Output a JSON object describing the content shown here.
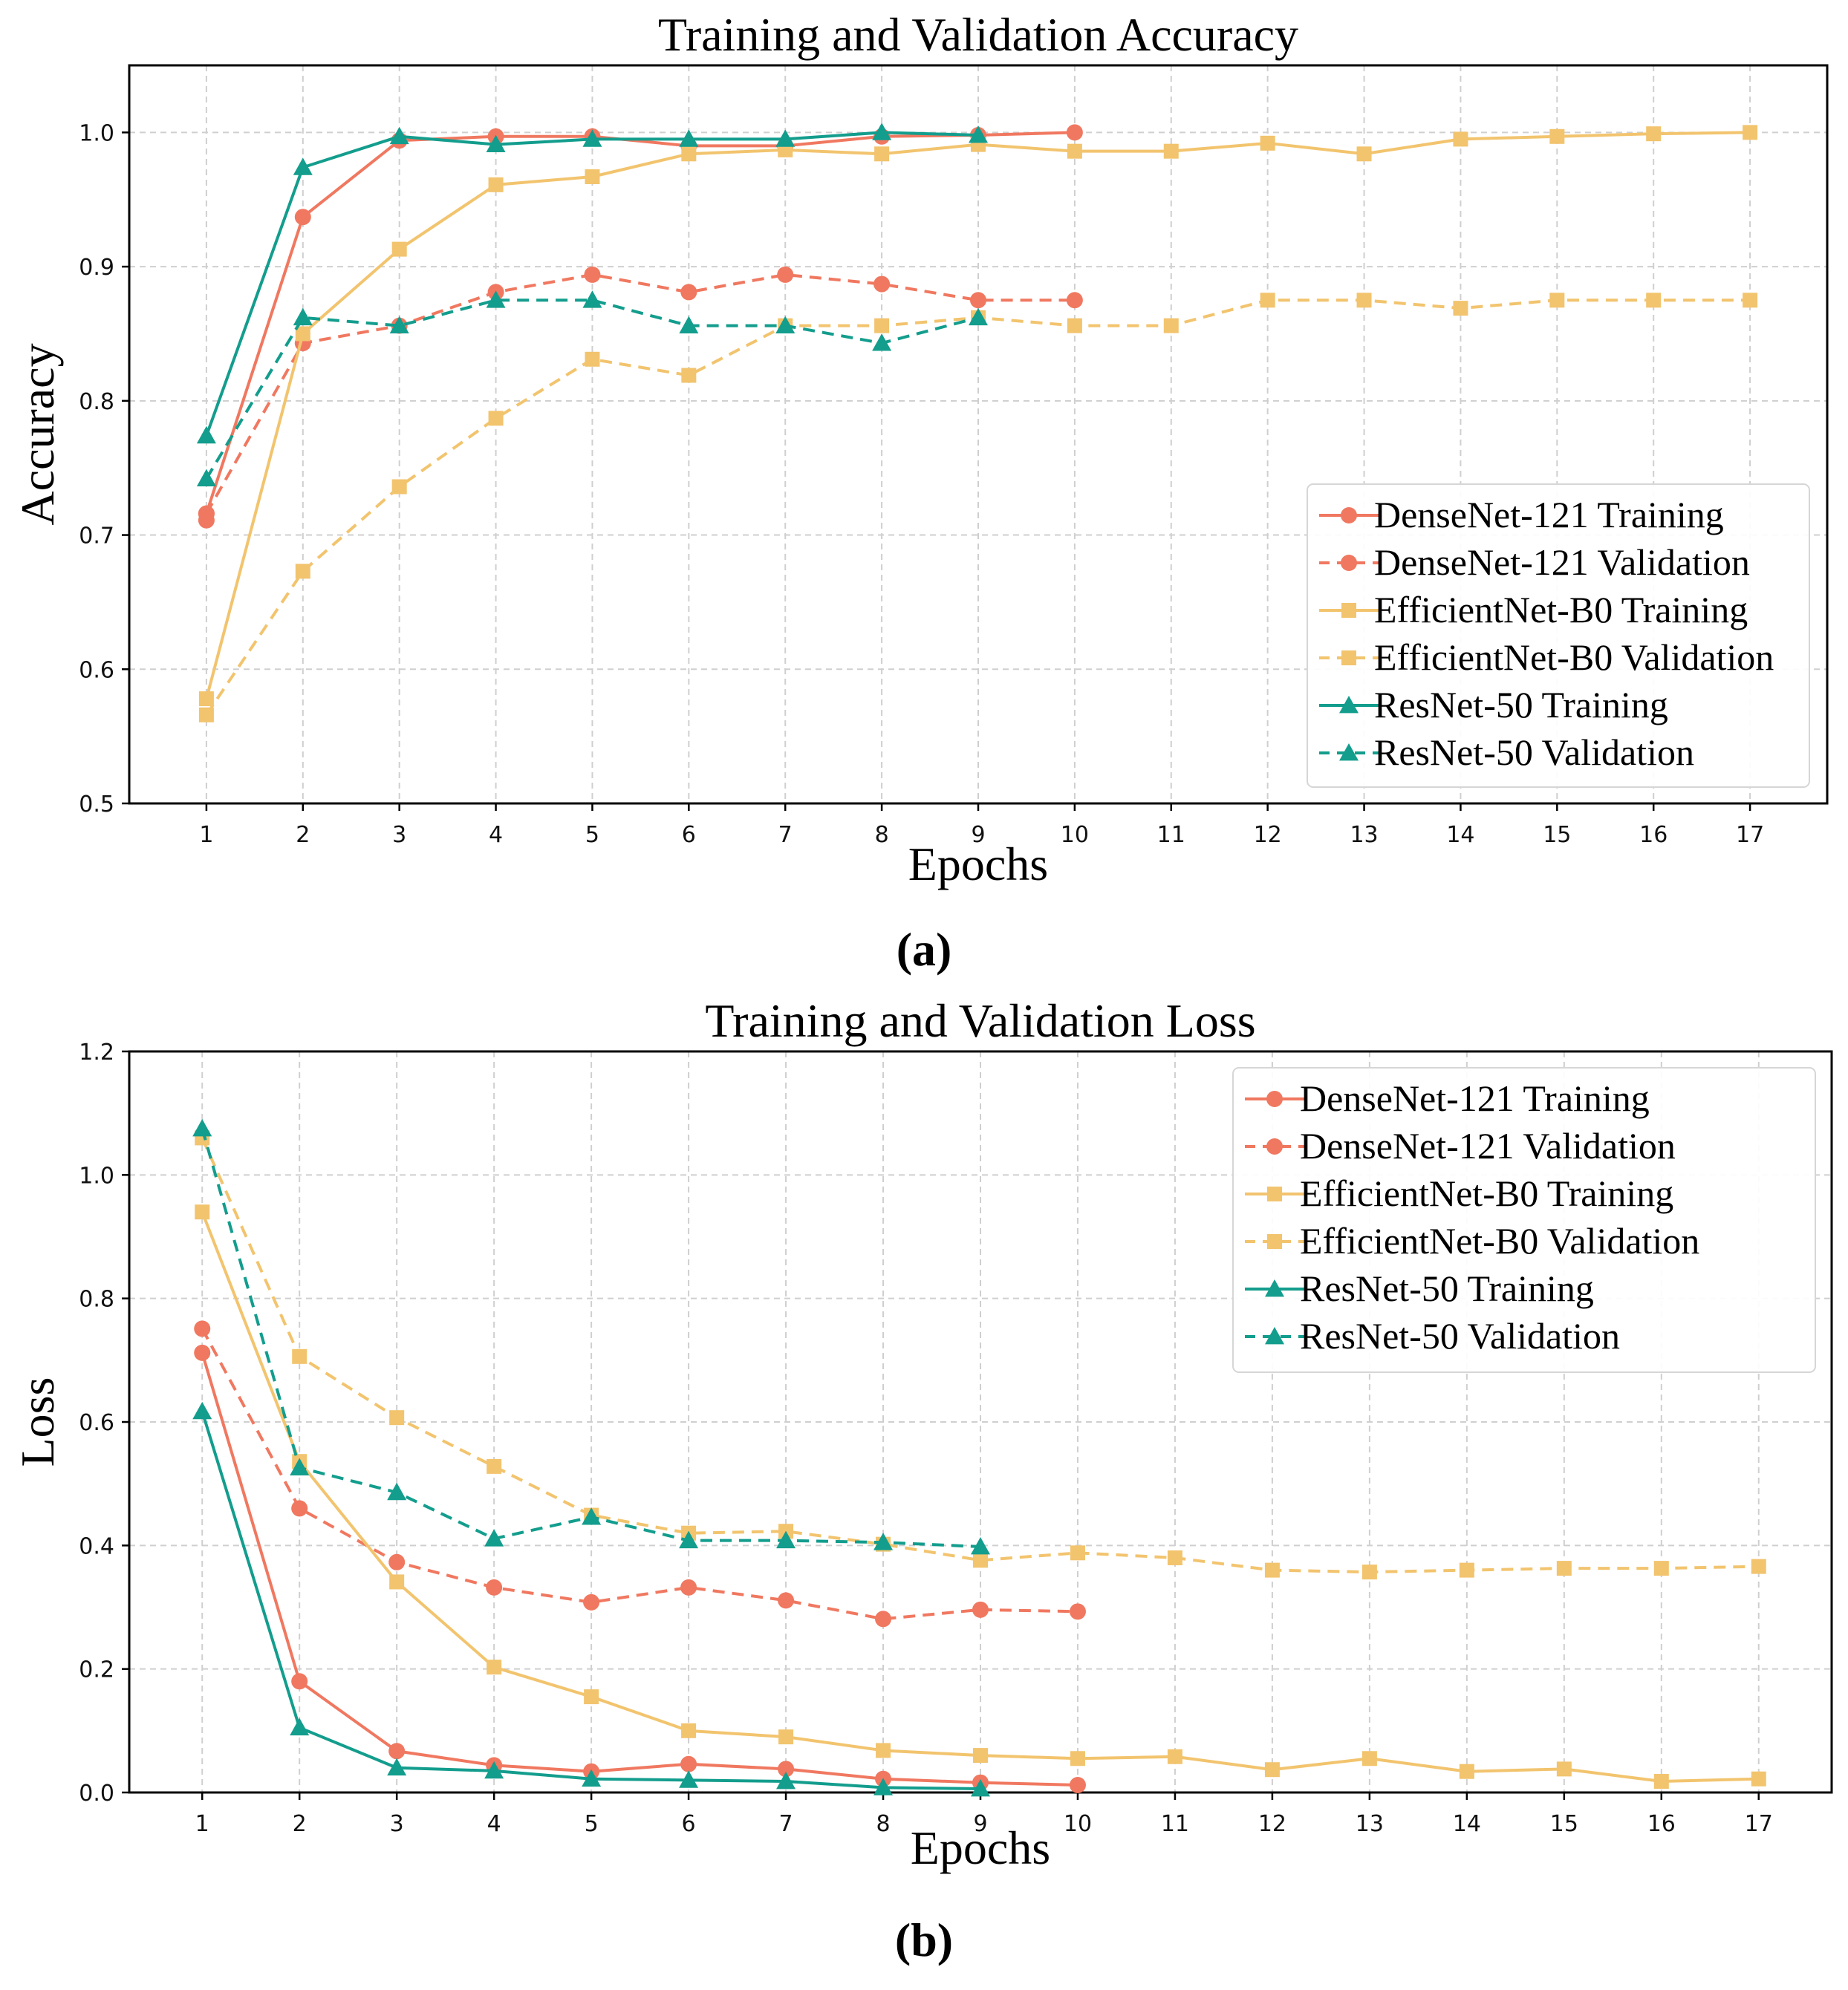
{
  "chart_data": [
    {
      "id": "accuracy",
      "type": "line",
      "panel_label": "(a)",
      "title": "Training and Validation Accuracy",
      "xlabel": "Epochs",
      "ylabel": "Accuracy",
      "xlim": [
        0.2,
        17.8
      ],
      "ylim": [
        0.5,
        1.05
      ],
      "xticks": [
        1,
        2,
        3,
        4,
        5,
        6,
        7,
        8,
        9,
        10,
        11,
        12,
        13,
        14,
        15,
        16,
        17
      ],
      "xtick_labels": [
        "1",
        "2",
        "3",
        "4",
        "5",
        "6",
        "7",
        "8",
        "9",
        "10",
        "11",
        "12",
        "13",
        "14",
        "15",
        "16",
        "17"
      ],
      "yticks": [
        0.5,
        0.6,
        0.7,
        0.8,
        0.9,
        1.0
      ],
      "ytick_labels": [
        "0.5",
        "0.6",
        "0.7",
        "0.8",
        "0.9",
        "1.0"
      ],
      "grid": true,
      "legend_position": "lower-right",
      "series": [
        {
          "name": "DenseNet-121 Training",
          "color": "#F07860",
          "linestyle": "solid",
          "marker": "circle",
          "x": [
            1,
            1,
            2,
            3,
            4,
            5,
            6,
            7,
            8,
            9,
            10
          ],
          "y": [
            0.711,
            0.716,
            0.937,
            0.994,
            0.997,
            0.997,
            0.99,
            0.99,
            0.997,
            0.998,
            1.0
          ]
        },
        {
          "name": "DenseNet-121 Validation",
          "color": "#F07860",
          "linestyle": "dashed",
          "marker": "circle",
          "x": [
            1,
            2,
            3,
            4,
            5,
            6,
            7,
            8,
            9,
            10
          ],
          "y": [
            0.716,
            0.843,
            0.856,
            0.881,
            0.894,
            0.881,
            0.894,
            0.887,
            0.875,
            0.875
          ]
        },
        {
          "name": "EfficientNet-B0 Training",
          "color": "#F2C46E",
          "linestyle": "solid",
          "marker": "square",
          "x": [
            1,
            2,
            3,
            4,
            5,
            6,
            7,
            8,
            9,
            10,
            11,
            12,
            13,
            14,
            15,
            16,
            17
          ],
          "y": [
            0.578,
            0.85,
            0.913,
            0.961,
            0.967,
            0.984,
            0.987,
            0.984,
            0.991,
            0.986,
            0.986,
            0.992,
            0.984,
            0.995,
            0.997,
            0.999,
            1.0
          ]
        },
        {
          "name": "EfficientNet-B0 Validation",
          "color": "#F2C46E",
          "linestyle": "dashed",
          "marker": "square",
          "x": [
            1,
            2,
            3,
            4,
            5,
            6,
            7,
            8,
            9,
            10,
            11,
            12,
            13,
            14,
            15,
            16,
            17
          ],
          "y": [
            0.566,
            0.673,
            0.736,
            0.787,
            0.831,
            0.819,
            0.856,
            0.856,
            0.862,
            0.856,
            0.856,
            0.875,
            0.875,
            0.869,
            0.875,
            0.875,
            0.875
          ]
        },
        {
          "name": "ResNet-50 Training",
          "color": "#139D8D",
          "linestyle": "solid",
          "marker": "triangle",
          "x": [
            1,
            2,
            3,
            4,
            5,
            6,
            7,
            8,
            9
          ],
          "y": [
            0.774,
            0.974,
            0.997,
            0.991,
            0.995,
            0.995,
            0.995,
            1.0,
            0.998
          ]
        },
        {
          "name": "ResNet-50 Validation",
          "color": "#139D8D",
          "linestyle": "dashed",
          "marker": "triangle",
          "x": [
            1,
            2,
            3,
            4,
            5,
            6,
            7,
            8,
            9
          ],
          "y": [
            0.742,
            0.862,
            0.856,
            0.875,
            0.875,
            0.856,
            0.856,
            0.843,
            0.862
          ]
        }
      ]
    },
    {
      "id": "loss",
      "type": "line",
      "panel_label": "(b)",
      "title": "Training and Validation Loss",
      "xlabel": "Epochs",
      "ylabel": "Loss",
      "xlim": [
        0.25,
        17.75
      ],
      "ylim": [
        0.0,
        1.2
      ],
      "xticks": [
        1,
        2,
        3,
        4,
        5,
        6,
        7,
        8,
        9,
        10,
        11,
        12,
        13,
        14,
        15,
        16,
        17
      ],
      "xtick_labels": [
        "1",
        "2",
        "3",
        "4",
        "5",
        "6",
        "7",
        "8",
        "9",
        "10",
        "11",
        "12",
        "13",
        "14",
        "15",
        "16",
        "17"
      ],
      "yticks": [
        0.0,
        0.2,
        0.4,
        0.6,
        0.8,
        1.0,
        1.2
      ],
      "ytick_labels": [
        "0.0",
        "0.2",
        "0.4",
        "0.6",
        "0.8",
        "1.0",
        "1.2"
      ],
      "grid": true,
      "legend_position": "upper-right",
      "series": [
        {
          "name": "DenseNet-121 Training",
          "color": "#F07860",
          "linestyle": "solid",
          "marker": "circle",
          "x": [
            1,
            2,
            3,
            4,
            5,
            6,
            7,
            8,
            9,
            10
          ],
          "y": [
            0.712,
            0.18,
            0.067,
            0.044,
            0.034,
            0.046,
            0.038,
            0.022,
            0.016,
            0.012
          ]
        },
        {
          "name": "DenseNet-121 Validation",
          "color": "#F07860",
          "linestyle": "dashed",
          "marker": "circle",
          "x": [
            1,
            2,
            3,
            4,
            5,
            6,
            7,
            8,
            9,
            10
          ],
          "y": [
            0.751,
            0.46,
            0.373,
            0.332,
            0.308,
            0.332,
            0.311,
            0.281,
            0.296,
            0.293
          ]
        },
        {
          "name": "EfficientNet-B0 Training",
          "color": "#F2C46E",
          "linestyle": "solid",
          "marker": "square",
          "x": [
            1,
            2,
            3,
            4,
            5,
            6,
            7,
            8,
            9,
            10,
            11,
            12,
            13,
            14,
            15,
            16,
            17
          ],
          "y": [
            0.94,
            0.536,
            0.341,
            0.203,
            0.155,
            0.1,
            0.09,
            0.068,
            0.06,
            0.055,
            0.058,
            0.037,
            0.055,
            0.034,
            0.038,
            0.018,
            0.022
          ]
        },
        {
          "name": "EfficientNet-B0 Validation",
          "color": "#F2C46E",
          "linestyle": "dashed",
          "marker": "square",
          "x": [
            1,
            2,
            3,
            4,
            5,
            6,
            7,
            8,
            9,
            10,
            11,
            12,
            13,
            14,
            15,
            16,
            17
          ],
          "y": [
            1.06,
            0.706,
            0.607,
            0.528,
            0.449,
            0.42,
            0.423,
            0.402,
            0.376,
            0.388,
            0.38,
            0.36,
            0.357,
            0.36,
            0.363,
            0.363,
            0.366
          ]
        },
        {
          "name": "ResNet-50 Training",
          "color": "#139D8D",
          "linestyle": "solid",
          "marker": "triangle",
          "x": [
            1,
            2,
            3,
            4,
            5,
            6,
            7,
            8,
            9
          ],
          "y": [
            0.617,
            0.105,
            0.04,
            0.035,
            0.022,
            0.02,
            0.018,
            0.008,
            0.006
          ]
        },
        {
          "name": "ResNet-50 Validation",
          "color": "#139D8D",
          "linestyle": "dashed",
          "marker": "triangle",
          "x": [
            1,
            2,
            3,
            4,
            5,
            6,
            7,
            8,
            9
          ],
          "y": [
            1.075,
            0.526,
            0.486,
            0.411,
            0.446,
            0.408,
            0.408,
            0.405,
            0.398
          ]
        }
      ]
    }
  ]
}
